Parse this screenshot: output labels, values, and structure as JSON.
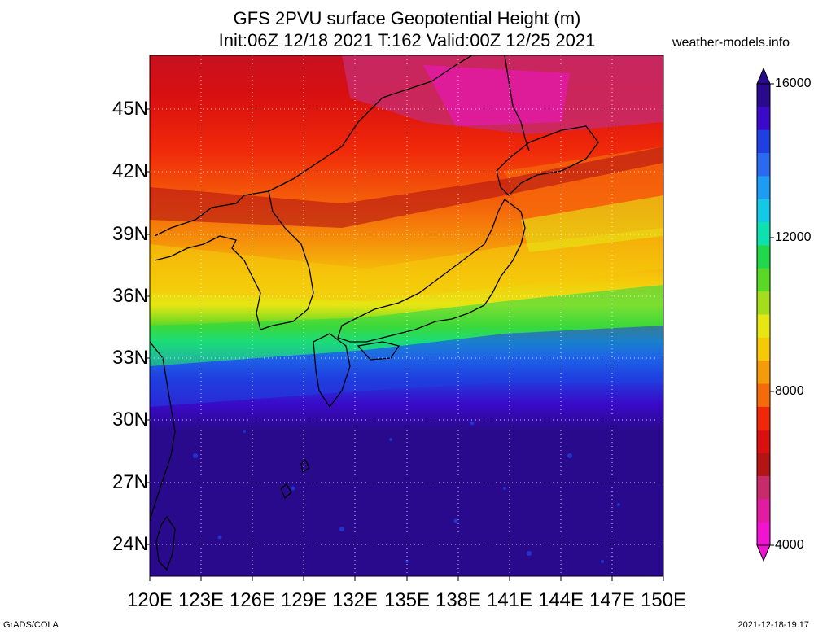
{
  "title": {
    "line1": "GFS 2PVU surface Geopotential Height (m)",
    "line2": "Init:06Z 12/18 2021 T:162 Valid:00Z 12/25 2021"
  },
  "site": "weather-models.info",
  "lat_labels": [
    "45N",
    "42N",
    "39N",
    "36N",
    "33N",
    "30N",
    "27N",
    "24N"
  ],
  "lon_labels": [
    "120E",
    "123E",
    "126E",
    "129E",
    "132E",
    "135E",
    "138E",
    "141E",
    "144E",
    "147E",
    "150E"
  ],
  "colorbar": {
    "labels": [
      "16000",
      "12000",
      "8000",
      "4000"
    ],
    "colors": [
      "#2a0a8c",
      "#3a0ac8",
      "#1f3fe0",
      "#2a6af0",
      "#1e9cf5",
      "#14c8e6",
      "#10e0b0",
      "#22d84a",
      "#5ad826",
      "#a6dc1e",
      "#e6e614",
      "#f5c80a",
      "#f59a0a",
      "#f56a0a",
      "#f0280a",
      "#d81010",
      "#b41414",
      "#c82a6a",
      "#e01ca0",
      "#f014d2"
    ]
  },
  "footer": {
    "left": "GrADS/COLA",
    "right": "2021-12-18-19:17"
  }
}
